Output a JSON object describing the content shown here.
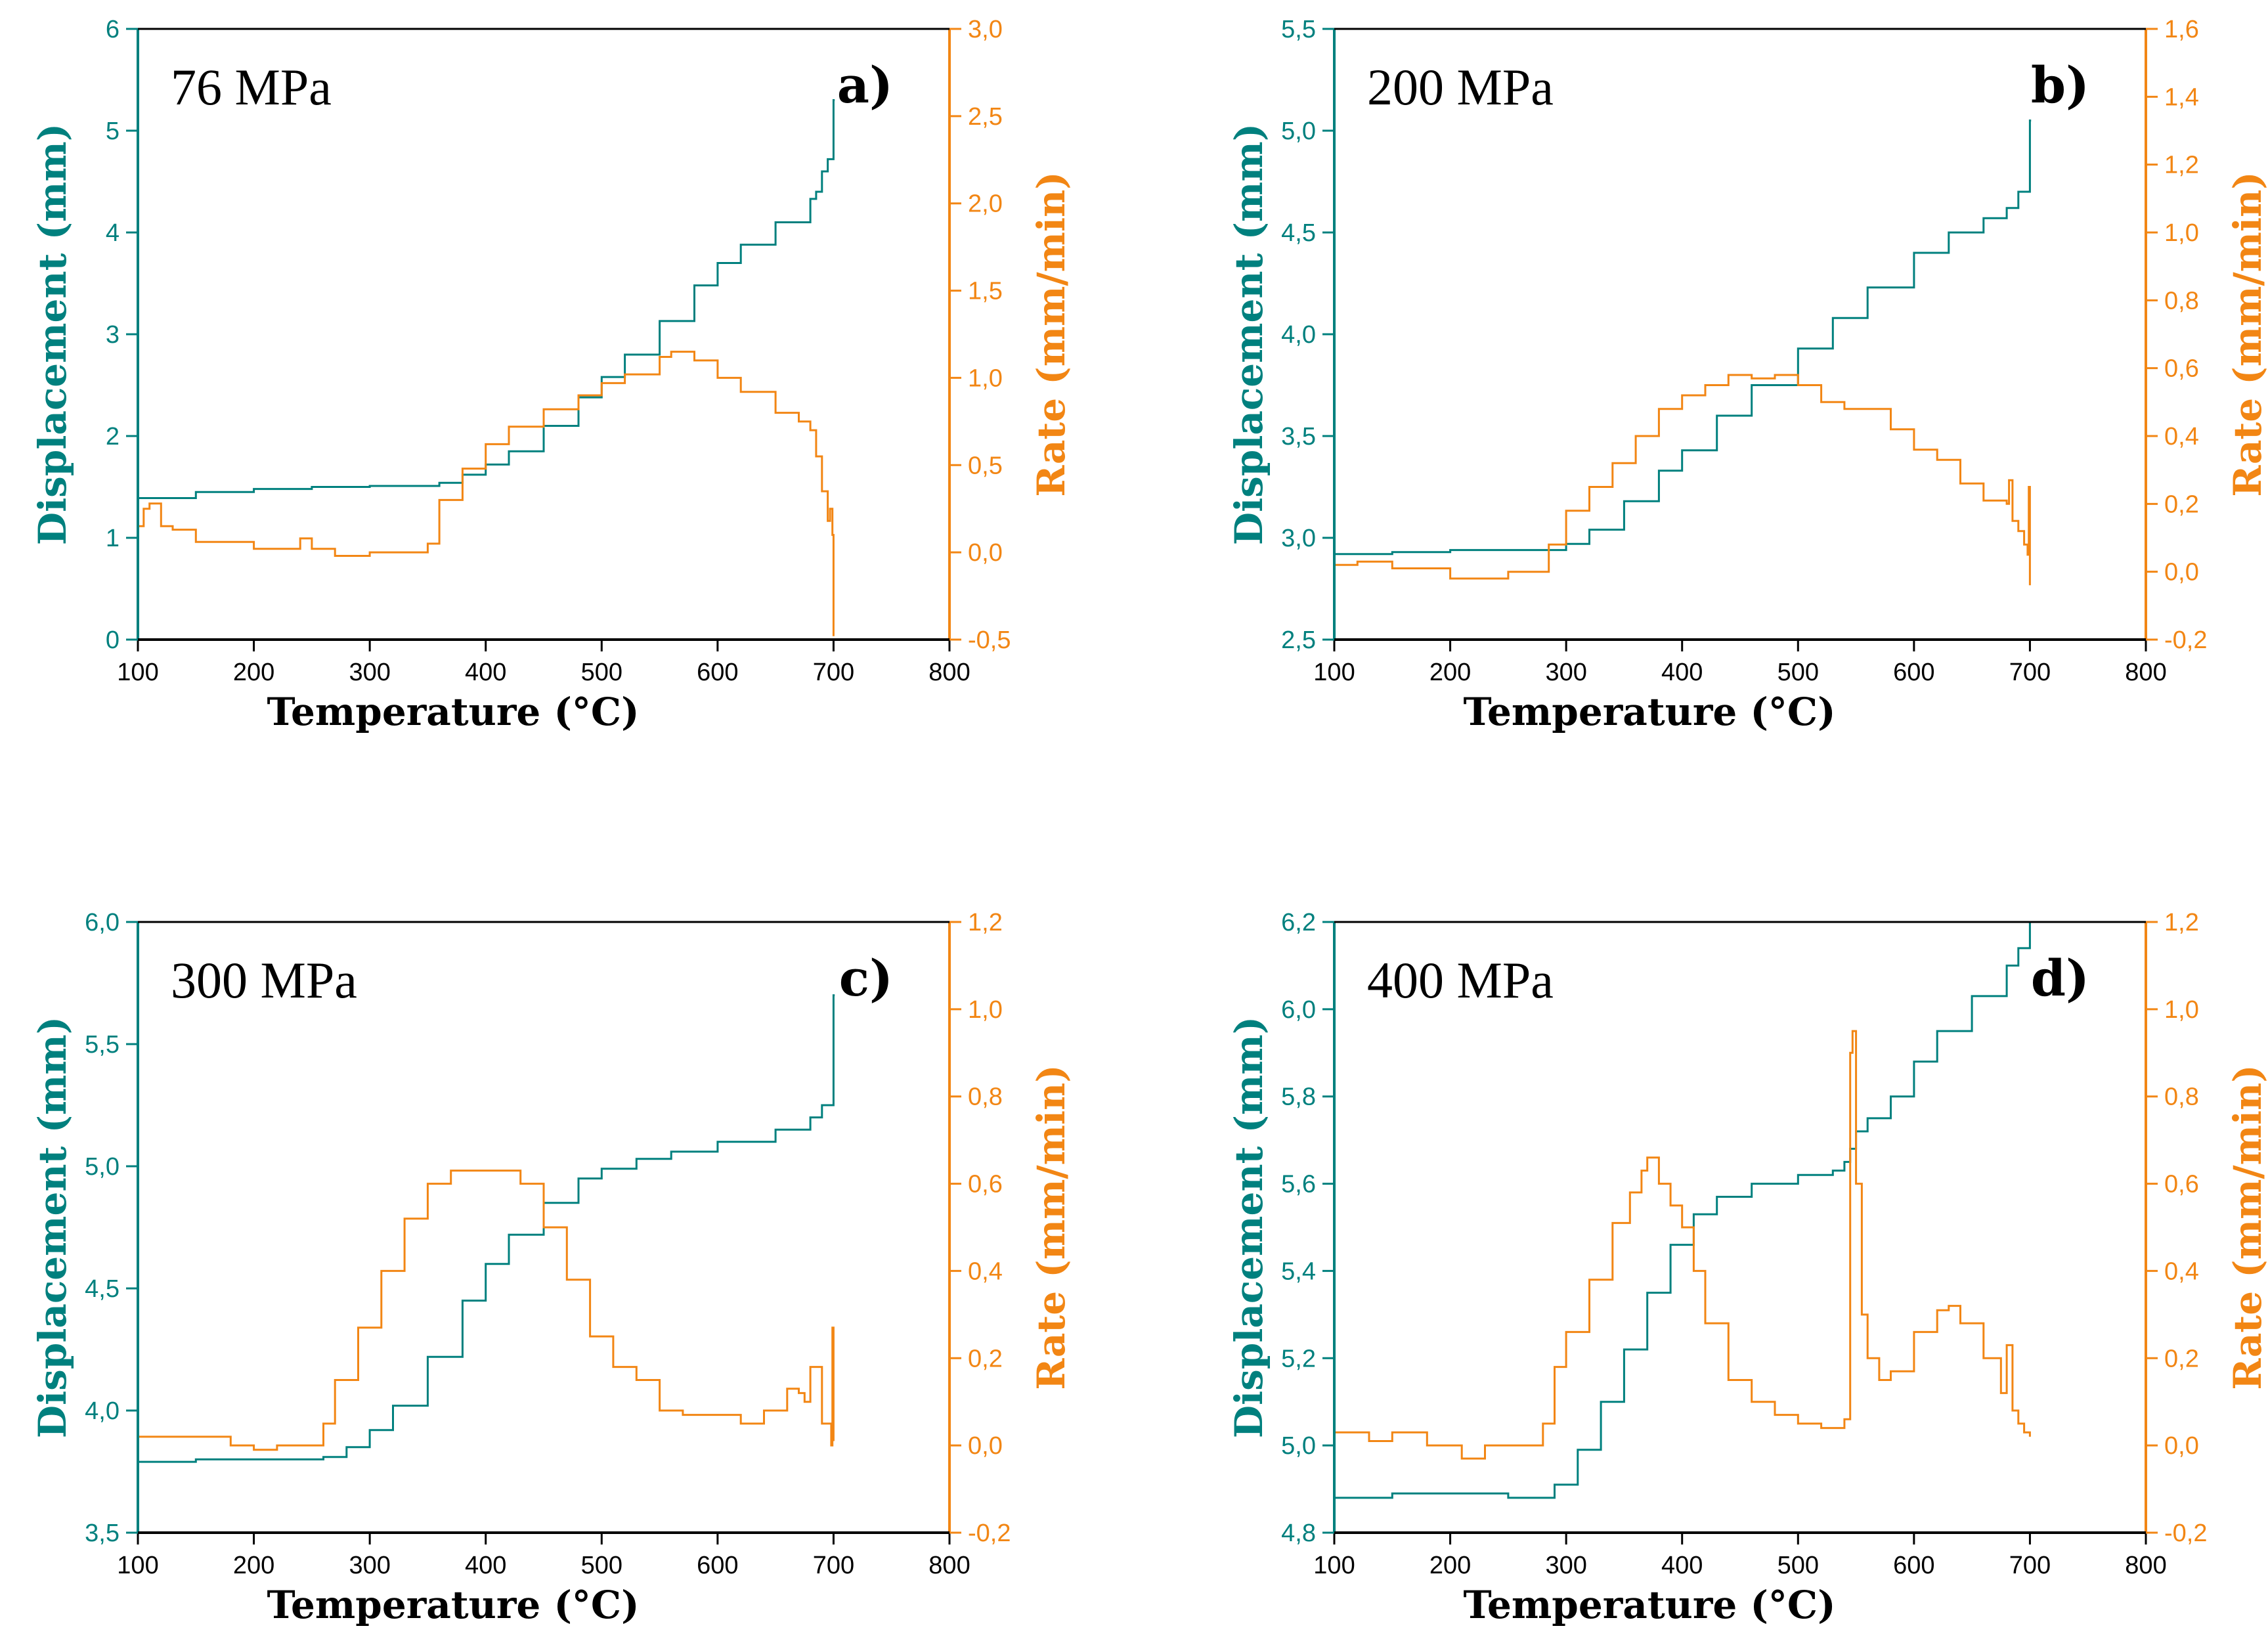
{
  "figure": {
    "colors": {
      "displacement": "#00807e",
      "rate": "#f28614",
      "frame": "#000000"
    },
    "x_axis_title": "Temperature (°C)",
    "left_axis_title": "Displacement (mm)",
    "right_axis_title": "Rate (mm/min)"
  },
  "chart_data": [
    {
      "type": "line",
      "panel": "a)",
      "pressure_label": "76 MPa",
      "xlabel": "Temperature (°C)",
      "ylabel_left": "Displacement (mm)",
      "ylabel_right": "Rate (mm/min)",
      "xlim": [
        100,
        800
      ],
      "ylim_left": [
        0,
        6
      ],
      "ylim_right": [
        -0.5,
        3.0
      ],
      "x_ticks": [
        100,
        200,
        300,
        400,
        500,
        600,
        700,
        800
      ],
      "y_left_ticks": [
        "0",
        "1",
        "2",
        "3",
        "4",
        "5",
        "6"
      ],
      "y_right_ticks": [
        "-0,5",
        "0,0",
        "0,5",
        "1,0",
        "1,5",
        "2,0",
        "2,5",
        "3,0"
      ],
      "series": [
        {
          "name": "Displacement (mm)",
          "axis": "left",
          "x": [
            100,
            150,
            200,
            250,
            300,
            350,
            360,
            380,
            400,
            420,
            450,
            480,
            500,
            520,
            550,
            580,
            600,
            620,
            650,
            680,
            685,
            690,
            695,
            700,
            700,
            701
          ],
          "y": [
            1.39,
            1.45,
            1.48,
            1.5,
            1.51,
            1.51,
            1.54,
            1.62,
            1.72,
            1.85,
            2.1,
            2.38,
            2.58,
            2.8,
            3.13,
            3.48,
            3.7,
            3.88,
            4.1,
            4.33,
            4.4,
            4.6,
            4.72,
            4.75,
            5.3,
            5.3
          ]
        },
        {
          "name": "Rate (mm/min)",
          "axis": "right",
          "x": [
            100,
            105,
            110,
            120,
            130,
            150,
            170,
            200,
            230,
            240,
            250,
            270,
            300,
            340,
            350,
            360,
            380,
            400,
            420,
            450,
            480,
            500,
            520,
            550,
            560,
            580,
            600,
            620,
            650,
            670,
            680,
            685,
            690,
            695,
            697,
            699,
            700
          ],
          "y": [
            0.15,
            0.25,
            0.28,
            0.15,
            0.13,
            0.06,
            0.06,
            0.02,
            0.02,
            0.08,
            0.02,
            -0.02,
            0.0,
            0.0,
            0.05,
            0.3,
            0.48,
            0.62,
            0.72,
            0.82,
            0.9,
            0.97,
            1.02,
            1.12,
            1.15,
            1.1,
            1.0,
            0.92,
            0.8,
            0.75,
            0.7,
            0.55,
            0.35,
            0.18,
            0.25,
            0.1,
            -0.48
          ]
        }
      ]
    },
    {
      "type": "line",
      "panel": "b)",
      "pressure_label": "200 MPa",
      "xlabel": "Temperature (°C)",
      "ylabel_left": "Displacement (mm)",
      "ylabel_right": "Rate (mm/min)",
      "xlim": [
        100,
        800
      ],
      "ylim_left": [
        2.5,
        5.5
      ],
      "ylim_right": [
        -0.2,
        1.6
      ],
      "x_ticks": [
        100,
        200,
        300,
        400,
        500,
        600,
        700,
        800
      ],
      "y_left_ticks": [
        "2,5",
        "3,0",
        "3,5",
        "4,0",
        "4,5",
        "5,0",
        "5,5"
      ],
      "y_right_ticks": [
        "-0,2",
        "0,0",
        "0,2",
        "0,4",
        "0,6",
        "0,8",
        "1,0",
        "1,2",
        "1,4",
        "1,6"
      ],
      "series": [
        {
          "name": "Displacement (mm)",
          "axis": "left",
          "x": [
            100,
            150,
            200,
            250,
            280,
            300,
            320,
            350,
            380,
            400,
            430,
            460,
            500,
            530,
            560,
            600,
            630,
            660,
            680,
            690,
            700,
            700,
            701
          ],
          "y": [
            2.92,
            2.93,
            2.94,
            2.94,
            2.94,
            2.97,
            3.04,
            3.18,
            3.33,
            3.43,
            3.6,
            3.75,
            3.93,
            4.08,
            4.23,
            4.4,
            4.5,
            4.57,
            4.62,
            4.7,
            4.72,
            5.05,
            5.05
          ]
        },
        {
          "name": "Rate (mm/min)",
          "axis": "right",
          "x": [
            100,
            120,
            150,
            200,
            250,
            280,
            285,
            300,
            320,
            340,
            360,
            380,
            400,
            420,
            440,
            460,
            480,
            500,
            520,
            540,
            560,
            580,
            600,
            620,
            640,
            660,
            680,
            682,
            685,
            690,
            695,
            698,
            699,
            700
          ],
          "y": [
            0.02,
            0.03,
            0.01,
            -0.02,
            0.0,
            0.0,
            0.08,
            0.18,
            0.25,
            0.32,
            0.4,
            0.48,
            0.52,
            0.55,
            0.58,
            0.57,
            0.58,
            0.55,
            0.5,
            0.48,
            0.48,
            0.42,
            0.36,
            0.33,
            0.26,
            0.21,
            0.2,
            0.27,
            0.15,
            0.12,
            0.08,
            0.05,
            0.25,
            -0.04
          ]
        }
      ]
    },
    {
      "type": "line",
      "panel": "c)",
      "pressure_label": "300 MPa",
      "xlabel": "Temperature (°C)",
      "ylabel_left": "Displacement (mm)",
      "ylabel_right": "Rate (mm/min)",
      "xlim": [
        100,
        800
      ],
      "ylim_left": [
        3.5,
        6.0
      ],
      "ylim_right": [
        -0.2,
        1.2
      ],
      "x_ticks": [
        100,
        200,
        300,
        400,
        500,
        600,
        700,
        800
      ],
      "y_left_ticks": [
        "3,5",
        "4,0",
        "4,5",
        "5,0",
        "5,5",
        "6,0"
      ],
      "y_right_ticks": [
        "-0,2",
        "0,0",
        "0,2",
        "0,4",
        "0,6",
        "0,8",
        "1,0",
        "1,2"
      ],
      "series": [
        {
          "name": "Displacement (mm)",
          "axis": "left",
          "x": [
            100,
            150,
            200,
            250,
            260,
            280,
            300,
            320,
            350,
            380,
            400,
            420,
            450,
            480,
            500,
            530,
            560,
            600,
            650,
            680,
            690,
            700,
            700,
            701
          ],
          "y": [
            3.79,
            3.8,
            3.8,
            3.8,
            3.81,
            3.85,
            3.92,
            4.02,
            4.22,
            4.45,
            4.6,
            4.72,
            4.85,
            4.95,
            4.99,
            5.03,
            5.06,
            5.1,
            5.15,
            5.2,
            5.25,
            5.27,
            5.7,
            5.7
          ]
        },
        {
          "name": "Rate (mm/min)",
          "axis": "right",
          "x": [
            100,
            150,
            180,
            200,
            220,
            250,
            260,
            270,
            290,
            310,
            330,
            350,
            370,
            400,
            420,
            430,
            450,
            470,
            490,
            510,
            530,
            550,
            570,
            600,
            620,
            640,
            660,
            670,
            675,
            680,
            690,
            698,
            699,
            700
          ],
          "y": [
            0.02,
            0.02,
            0.0,
            -0.01,
            0.0,
            0.0,
            0.05,
            0.15,
            0.27,
            0.4,
            0.52,
            0.6,
            0.63,
            0.63,
            0.63,
            0.6,
            0.5,
            0.38,
            0.25,
            0.18,
            0.15,
            0.08,
            0.07,
            0.07,
            0.05,
            0.08,
            0.13,
            0.12,
            0.1,
            0.18,
            0.05,
            0.0,
            0.27,
            0.01
          ]
        }
      ]
    },
    {
      "type": "line",
      "panel": "d)",
      "pressure_label": "400 MPa",
      "xlabel": "Temperature (°C)",
      "ylabel_left": "Displacement (mm)",
      "ylabel_right": "Rate (mm/min)",
      "xlim": [
        100,
        800
      ],
      "ylim_left": [
        4.8,
        6.2
      ],
      "ylim_right": [
        -0.2,
        1.2
      ],
      "x_ticks": [
        100,
        200,
        300,
        400,
        500,
        600,
        700,
        800
      ],
      "y_left_ticks": [
        "4,8",
        "5,0",
        "5,2",
        "5,4",
        "5,6",
        "5,8",
        "6,0",
        "6,2"
      ],
      "y_right_ticks": [
        "-0,2",
        "0,0",
        "0,2",
        "0,4",
        "0,6",
        "0,8",
        "1,0",
        "1,2"
      ],
      "series": [
        {
          "name": "Displacement (mm)",
          "axis": "left",
          "x": [
            100,
            150,
            200,
            250,
            270,
            290,
            310,
            330,
            350,
            370,
            390,
            410,
            430,
            460,
            500,
            530,
            540,
            545,
            550,
            560,
            580,
            600,
            620,
            650,
            680,
            690,
            700
          ],
          "y": [
            4.88,
            4.89,
            4.89,
            4.88,
            4.88,
            4.91,
            4.99,
            5.1,
            5.22,
            5.35,
            5.46,
            5.53,
            5.57,
            5.6,
            5.62,
            5.63,
            5.65,
            5.68,
            5.72,
            5.75,
            5.8,
            5.88,
            5.95,
            6.03,
            6.1,
            6.14,
            6.2
          ]
        },
        {
          "name": "Rate (mm/min)",
          "axis": "right",
          "x": [
            100,
            130,
            150,
            180,
            200,
            210,
            230,
            270,
            280,
            290,
            300,
            320,
            340,
            355,
            365,
            370,
            380,
            390,
            400,
            410,
            420,
            440,
            460,
            480,
            500,
            520,
            540,
            545,
            547,
            550,
            555,
            560,
            570,
            580,
            600,
            620,
            630,
            640,
            660,
            675,
            680,
            685,
            690,
            695,
            700
          ],
          "y": [
            0.03,
            0.01,
            0.03,
            0.0,
            0.0,
            -0.03,
            0.0,
            0.0,
            0.05,
            0.18,
            0.26,
            0.38,
            0.51,
            0.58,
            0.63,
            0.66,
            0.6,
            0.55,
            0.5,
            0.4,
            0.28,
            0.15,
            0.1,
            0.07,
            0.05,
            0.04,
            0.06,
            0.9,
            0.95,
            0.6,
            0.3,
            0.2,
            0.15,
            0.17,
            0.26,
            0.31,
            0.32,
            0.28,
            0.2,
            0.12,
            0.23,
            0.08,
            0.05,
            0.03,
            0.02
          ]
        }
      ]
    }
  ]
}
